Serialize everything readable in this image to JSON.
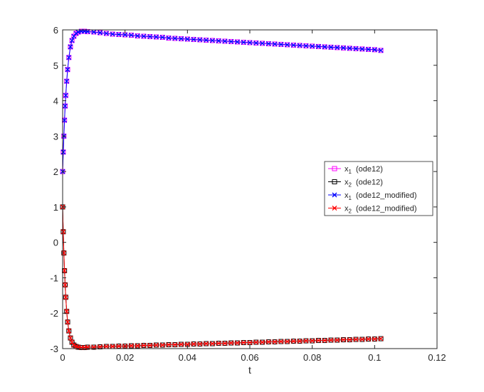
{
  "chart_data": {
    "type": "line",
    "title": "",
    "xlabel": "t",
    "ylabel": "",
    "xlim": [
      0,
      0.12
    ],
    "ylim": [
      -3,
      6
    ],
    "xticks": [
      0,
      0.02,
      0.04,
      0.06,
      0.08,
      0.1,
      0.12
    ],
    "xtick_labels": [
      "0",
      "0.02",
      "0.04",
      "0.06",
      "0.08",
      "0.1",
      "0.12"
    ],
    "yticks": [
      -3,
      -2,
      -1,
      0,
      1,
      2,
      3,
      4,
      5,
      6
    ],
    "ytick_labels": [
      "-3",
      "-2",
      "-1",
      "0",
      "1",
      "2",
      "3",
      "4",
      "5",
      "6"
    ],
    "grid": false,
    "legend_position": "right",
    "series": [
      {
        "name": "x₁  (ode12)",
        "legend_base": "x",
        "legend_sub": "1",
        "legend_suffix": "(ode12)",
        "color": "#ff00ff",
        "marker": "square",
        "x": [
          0,
          0.0002,
          0.0004,
          0.0006,
          0.0008,
          0.001,
          0.0013,
          0.0016,
          0.002,
          0.0025,
          0.003,
          0.0036,
          0.0043,
          0.005,
          0.006,
          0.007,
          0.008,
          0.01,
          0.012,
          0.014,
          0.016,
          0.018,
          0.02,
          0.022,
          0.024,
          0.026,
          0.028,
          0.03,
          0.032,
          0.034,
          0.036,
          0.038,
          0.04,
          0.042,
          0.044,
          0.046,
          0.048,
          0.05,
          0.052,
          0.054,
          0.056,
          0.058,
          0.06,
          0.062,
          0.064,
          0.066,
          0.068,
          0.07,
          0.072,
          0.074,
          0.076,
          0.078,
          0.08,
          0.082,
          0.084,
          0.086,
          0.088,
          0.09,
          0.092,
          0.094,
          0.096,
          0.098,
          0.1,
          0.102
        ],
        "y": [
          2.0,
          2.55,
          3.0,
          3.45,
          3.85,
          4.15,
          4.55,
          4.88,
          5.22,
          5.52,
          5.7,
          5.82,
          5.9,
          5.94,
          5.96,
          5.96,
          5.95,
          5.94,
          5.92,
          5.9,
          5.88,
          5.87,
          5.86,
          5.85,
          5.83,
          5.82,
          5.81,
          5.8,
          5.79,
          5.77,
          5.76,
          5.75,
          5.74,
          5.73,
          5.72,
          5.71,
          5.7,
          5.69,
          5.68,
          5.67,
          5.66,
          5.65,
          5.64,
          5.63,
          5.62,
          5.61,
          5.6,
          5.59,
          5.58,
          5.57,
          5.56,
          5.55,
          5.54,
          5.53,
          5.52,
          5.51,
          5.5,
          5.49,
          5.48,
          5.47,
          5.46,
          5.45,
          5.44,
          5.42
        ]
      },
      {
        "name": "x₂  (ode12)",
        "legend_base": "x",
        "legend_sub": "2",
        "legend_suffix": "(ode12)",
        "color": "#000000",
        "marker": "square",
        "x": [
          0,
          0.0002,
          0.0004,
          0.0006,
          0.0008,
          0.001,
          0.0013,
          0.0016,
          0.002,
          0.0025,
          0.003,
          0.0036,
          0.0043,
          0.005,
          0.006,
          0.007,
          0.008,
          0.01,
          0.012,
          0.014,
          0.016,
          0.018,
          0.02,
          0.022,
          0.024,
          0.026,
          0.028,
          0.03,
          0.032,
          0.034,
          0.036,
          0.038,
          0.04,
          0.042,
          0.044,
          0.046,
          0.048,
          0.05,
          0.052,
          0.054,
          0.056,
          0.058,
          0.06,
          0.062,
          0.064,
          0.066,
          0.068,
          0.07,
          0.072,
          0.074,
          0.076,
          0.078,
          0.08,
          0.082,
          0.084,
          0.086,
          0.088,
          0.09,
          0.092,
          0.094,
          0.096,
          0.098,
          0.1,
          0.102
        ],
        "y": [
          1.0,
          0.3,
          -0.3,
          -0.8,
          -1.2,
          -1.55,
          -1.95,
          -2.25,
          -2.5,
          -2.7,
          -2.82,
          -2.9,
          -2.94,
          -2.96,
          -2.97,
          -2.97,
          -2.96,
          -2.96,
          -2.95,
          -2.94,
          -2.94,
          -2.93,
          -2.93,
          -2.92,
          -2.92,
          -2.91,
          -2.91,
          -2.9,
          -2.9,
          -2.89,
          -2.89,
          -2.88,
          -2.88,
          -2.87,
          -2.87,
          -2.86,
          -2.86,
          -2.85,
          -2.85,
          -2.84,
          -2.84,
          -2.83,
          -2.83,
          -2.82,
          -2.82,
          -2.81,
          -2.81,
          -2.8,
          -2.8,
          -2.79,
          -2.79,
          -2.78,
          -2.78,
          -2.77,
          -2.77,
          -2.76,
          -2.76,
          -2.75,
          -2.75,
          -2.74,
          -2.74,
          -2.73,
          -2.73,
          -2.72
        ]
      },
      {
        "name": "x₁  (ode12_modified)",
        "legend_base": "x",
        "legend_sub": "1",
        "legend_suffix": "(ode12_modified)",
        "color": "#0000ff",
        "marker": "x",
        "x": [
          0,
          0.0002,
          0.0004,
          0.0006,
          0.0008,
          0.001,
          0.0013,
          0.0016,
          0.002,
          0.0025,
          0.003,
          0.0036,
          0.0043,
          0.005,
          0.006,
          0.007,
          0.008,
          0.01,
          0.012,
          0.014,
          0.016,
          0.018,
          0.02,
          0.022,
          0.024,
          0.026,
          0.028,
          0.03,
          0.032,
          0.034,
          0.036,
          0.038,
          0.04,
          0.042,
          0.044,
          0.046,
          0.048,
          0.05,
          0.052,
          0.054,
          0.056,
          0.058,
          0.06,
          0.062,
          0.064,
          0.066,
          0.068,
          0.07,
          0.072,
          0.074,
          0.076,
          0.078,
          0.08,
          0.082,
          0.084,
          0.086,
          0.088,
          0.09,
          0.092,
          0.094,
          0.096,
          0.098,
          0.1,
          0.102
        ],
        "y": [
          2.0,
          2.55,
          3.0,
          3.45,
          3.85,
          4.15,
          4.55,
          4.88,
          5.22,
          5.52,
          5.7,
          5.82,
          5.9,
          5.94,
          5.96,
          5.96,
          5.95,
          5.94,
          5.92,
          5.9,
          5.88,
          5.87,
          5.86,
          5.85,
          5.83,
          5.82,
          5.81,
          5.8,
          5.79,
          5.77,
          5.76,
          5.75,
          5.74,
          5.73,
          5.72,
          5.71,
          5.7,
          5.69,
          5.68,
          5.67,
          5.66,
          5.65,
          5.64,
          5.63,
          5.62,
          5.61,
          5.6,
          5.59,
          5.58,
          5.57,
          5.56,
          5.55,
          5.54,
          5.53,
          5.52,
          5.51,
          5.5,
          5.49,
          5.48,
          5.47,
          5.46,
          5.45,
          5.44,
          5.42
        ]
      },
      {
        "name": "x₂  (ode12_modified)",
        "legend_base": "x",
        "legend_sub": "2",
        "legend_suffix": "(ode12_modified)",
        "color": "#ff0000",
        "marker": "x",
        "x": [
          0,
          0.0002,
          0.0004,
          0.0006,
          0.0008,
          0.001,
          0.0013,
          0.0016,
          0.002,
          0.0025,
          0.003,
          0.0036,
          0.0043,
          0.005,
          0.006,
          0.007,
          0.008,
          0.01,
          0.012,
          0.014,
          0.016,
          0.018,
          0.02,
          0.022,
          0.024,
          0.026,
          0.028,
          0.03,
          0.032,
          0.034,
          0.036,
          0.038,
          0.04,
          0.042,
          0.044,
          0.046,
          0.048,
          0.05,
          0.052,
          0.054,
          0.056,
          0.058,
          0.06,
          0.062,
          0.064,
          0.066,
          0.068,
          0.07,
          0.072,
          0.074,
          0.076,
          0.078,
          0.08,
          0.082,
          0.084,
          0.086,
          0.088,
          0.09,
          0.092,
          0.094,
          0.096,
          0.098,
          0.1,
          0.102
        ],
        "y": [
          1.0,
          0.3,
          -0.3,
          -0.8,
          -1.2,
          -1.55,
          -1.95,
          -2.25,
          -2.5,
          -2.7,
          -2.82,
          -2.9,
          -2.94,
          -2.96,
          -2.97,
          -2.97,
          -2.96,
          -2.96,
          -2.95,
          -2.94,
          -2.94,
          -2.93,
          -2.93,
          -2.92,
          -2.92,
          -2.91,
          -2.91,
          -2.9,
          -2.9,
          -2.89,
          -2.89,
          -2.88,
          -2.88,
          -2.87,
          -2.87,
          -2.86,
          -2.86,
          -2.85,
          -2.85,
          -2.84,
          -2.84,
          -2.83,
          -2.83,
          -2.82,
          -2.82,
          -2.81,
          -2.81,
          -2.8,
          -2.8,
          -2.79,
          -2.79,
          -2.78,
          -2.78,
          -2.77,
          -2.77,
          -2.76,
          -2.76,
          -2.75,
          -2.75,
          -2.74,
          -2.74,
          -2.73,
          -2.73,
          -2.72
        ]
      }
    ]
  }
}
